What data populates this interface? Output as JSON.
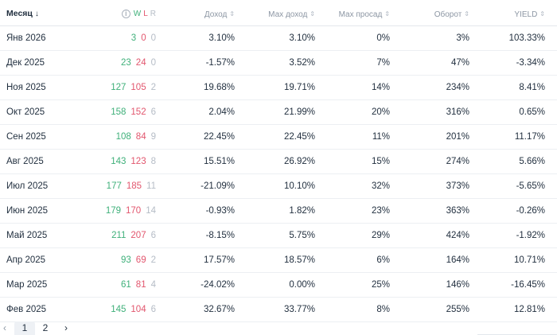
{
  "header": {
    "month": "Месяц",
    "month_arrow": "↓",
    "info": "i",
    "w": "W",
    "l": "L",
    "r": "R",
    "pnl": "Доход",
    "max_pnl": "Мах доход",
    "max_dd": "Мах просад",
    "turnover": "Оборот",
    "yield": "YIELD",
    "sort_icon": "⇕"
  },
  "rows": [
    {
      "month": "Янв 2026",
      "w": "3",
      "l": "0",
      "r": "0",
      "pnl": "3.10%",
      "max_pnl": "3.10%",
      "max_dd": "0%",
      "turnover": "3%",
      "yield": "103.33%"
    },
    {
      "month": "Дек 2025",
      "w": "23",
      "l": "24",
      "r": "0",
      "pnl": "-1.57%",
      "max_pnl": "3.52%",
      "max_dd": "7%",
      "turnover": "47%",
      "yield": "-3.34%"
    },
    {
      "month": "Ноя 2025",
      "w": "127",
      "l": "105",
      "r": "2",
      "pnl": "19.68%",
      "max_pnl": "19.71%",
      "max_dd": "14%",
      "turnover": "234%",
      "yield": "8.41%"
    },
    {
      "month": "Окт 2025",
      "w": "158",
      "l": "152",
      "r": "6",
      "pnl": "2.04%",
      "max_pnl": "21.99%",
      "max_dd": "20%",
      "turnover": "316%",
      "yield": "0.65%"
    },
    {
      "month": "Сен 2025",
      "w": "108",
      "l": "84",
      "r": "9",
      "pnl": "22.45%",
      "max_pnl": "22.45%",
      "max_dd": "11%",
      "turnover": "201%",
      "yield": "11.17%"
    },
    {
      "month": "Авг 2025",
      "w": "143",
      "l": "123",
      "r": "8",
      "pnl": "15.51%",
      "max_pnl": "26.92%",
      "max_dd": "15%",
      "turnover": "274%",
      "yield": "5.66%"
    },
    {
      "month": "Июл 2025",
      "w": "177",
      "l": "185",
      "r": "11",
      "pnl": "-21.09%",
      "max_pnl": "10.10%",
      "max_dd": "32%",
      "turnover": "373%",
      "yield": "-5.65%"
    },
    {
      "month": "Июн 2025",
      "w": "179",
      "l": "170",
      "r": "14",
      "pnl": "-0.93%",
      "max_pnl": "1.82%",
      "max_dd": "23%",
      "turnover": "363%",
      "yield": "-0.26%"
    },
    {
      "month": "Май 2025",
      "w": "211",
      "l": "207",
      "r": "6",
      "pnl": "-8.15%",
      "max_pnl": "5.75%",
      "max_dd": "29%",
      "turnover": "424%",
      "yield": "-1.92%"
    },
    {
      "month": "Апр 2025",
      "w": "93",
      "l": "69",
      "r": "2",
      "pnl": "17.57%",
      "max_pnl": "18.57%",
      "max_dd": "6%",
      "turnover": "164%",
      "yield": "10.71%"
    },
    {
      "month": "Мар 2025",
      "w": "61",
      "l": "81",
      "r": "4",
      "pnl": "-24.02%",
      "max_pnl": "0.00%",
      "max_dd": "25%",
      "turnover": "146%",
      "yield": "-16.45%"
    },
    {
      "month": "Фев 2025",
      "w": "145",
      "l": "104",
      "r": "6",
      "pnl": "32.67%",
      "max_pnl": "33.77%",
      "max_dd": "8%",
      "turnover": "255%",
      "yield": "12.81%"
    }
  ],
  "pagination": {
    "prev": "‹",
    "pages": [
      "1",
      "2"
    ],
    "next": "›"
  },
  "colors": {
    "win": "#3fb07a",
    "loss": "#e2566e",
    "refund": "#b5bcc6"
  }
}
